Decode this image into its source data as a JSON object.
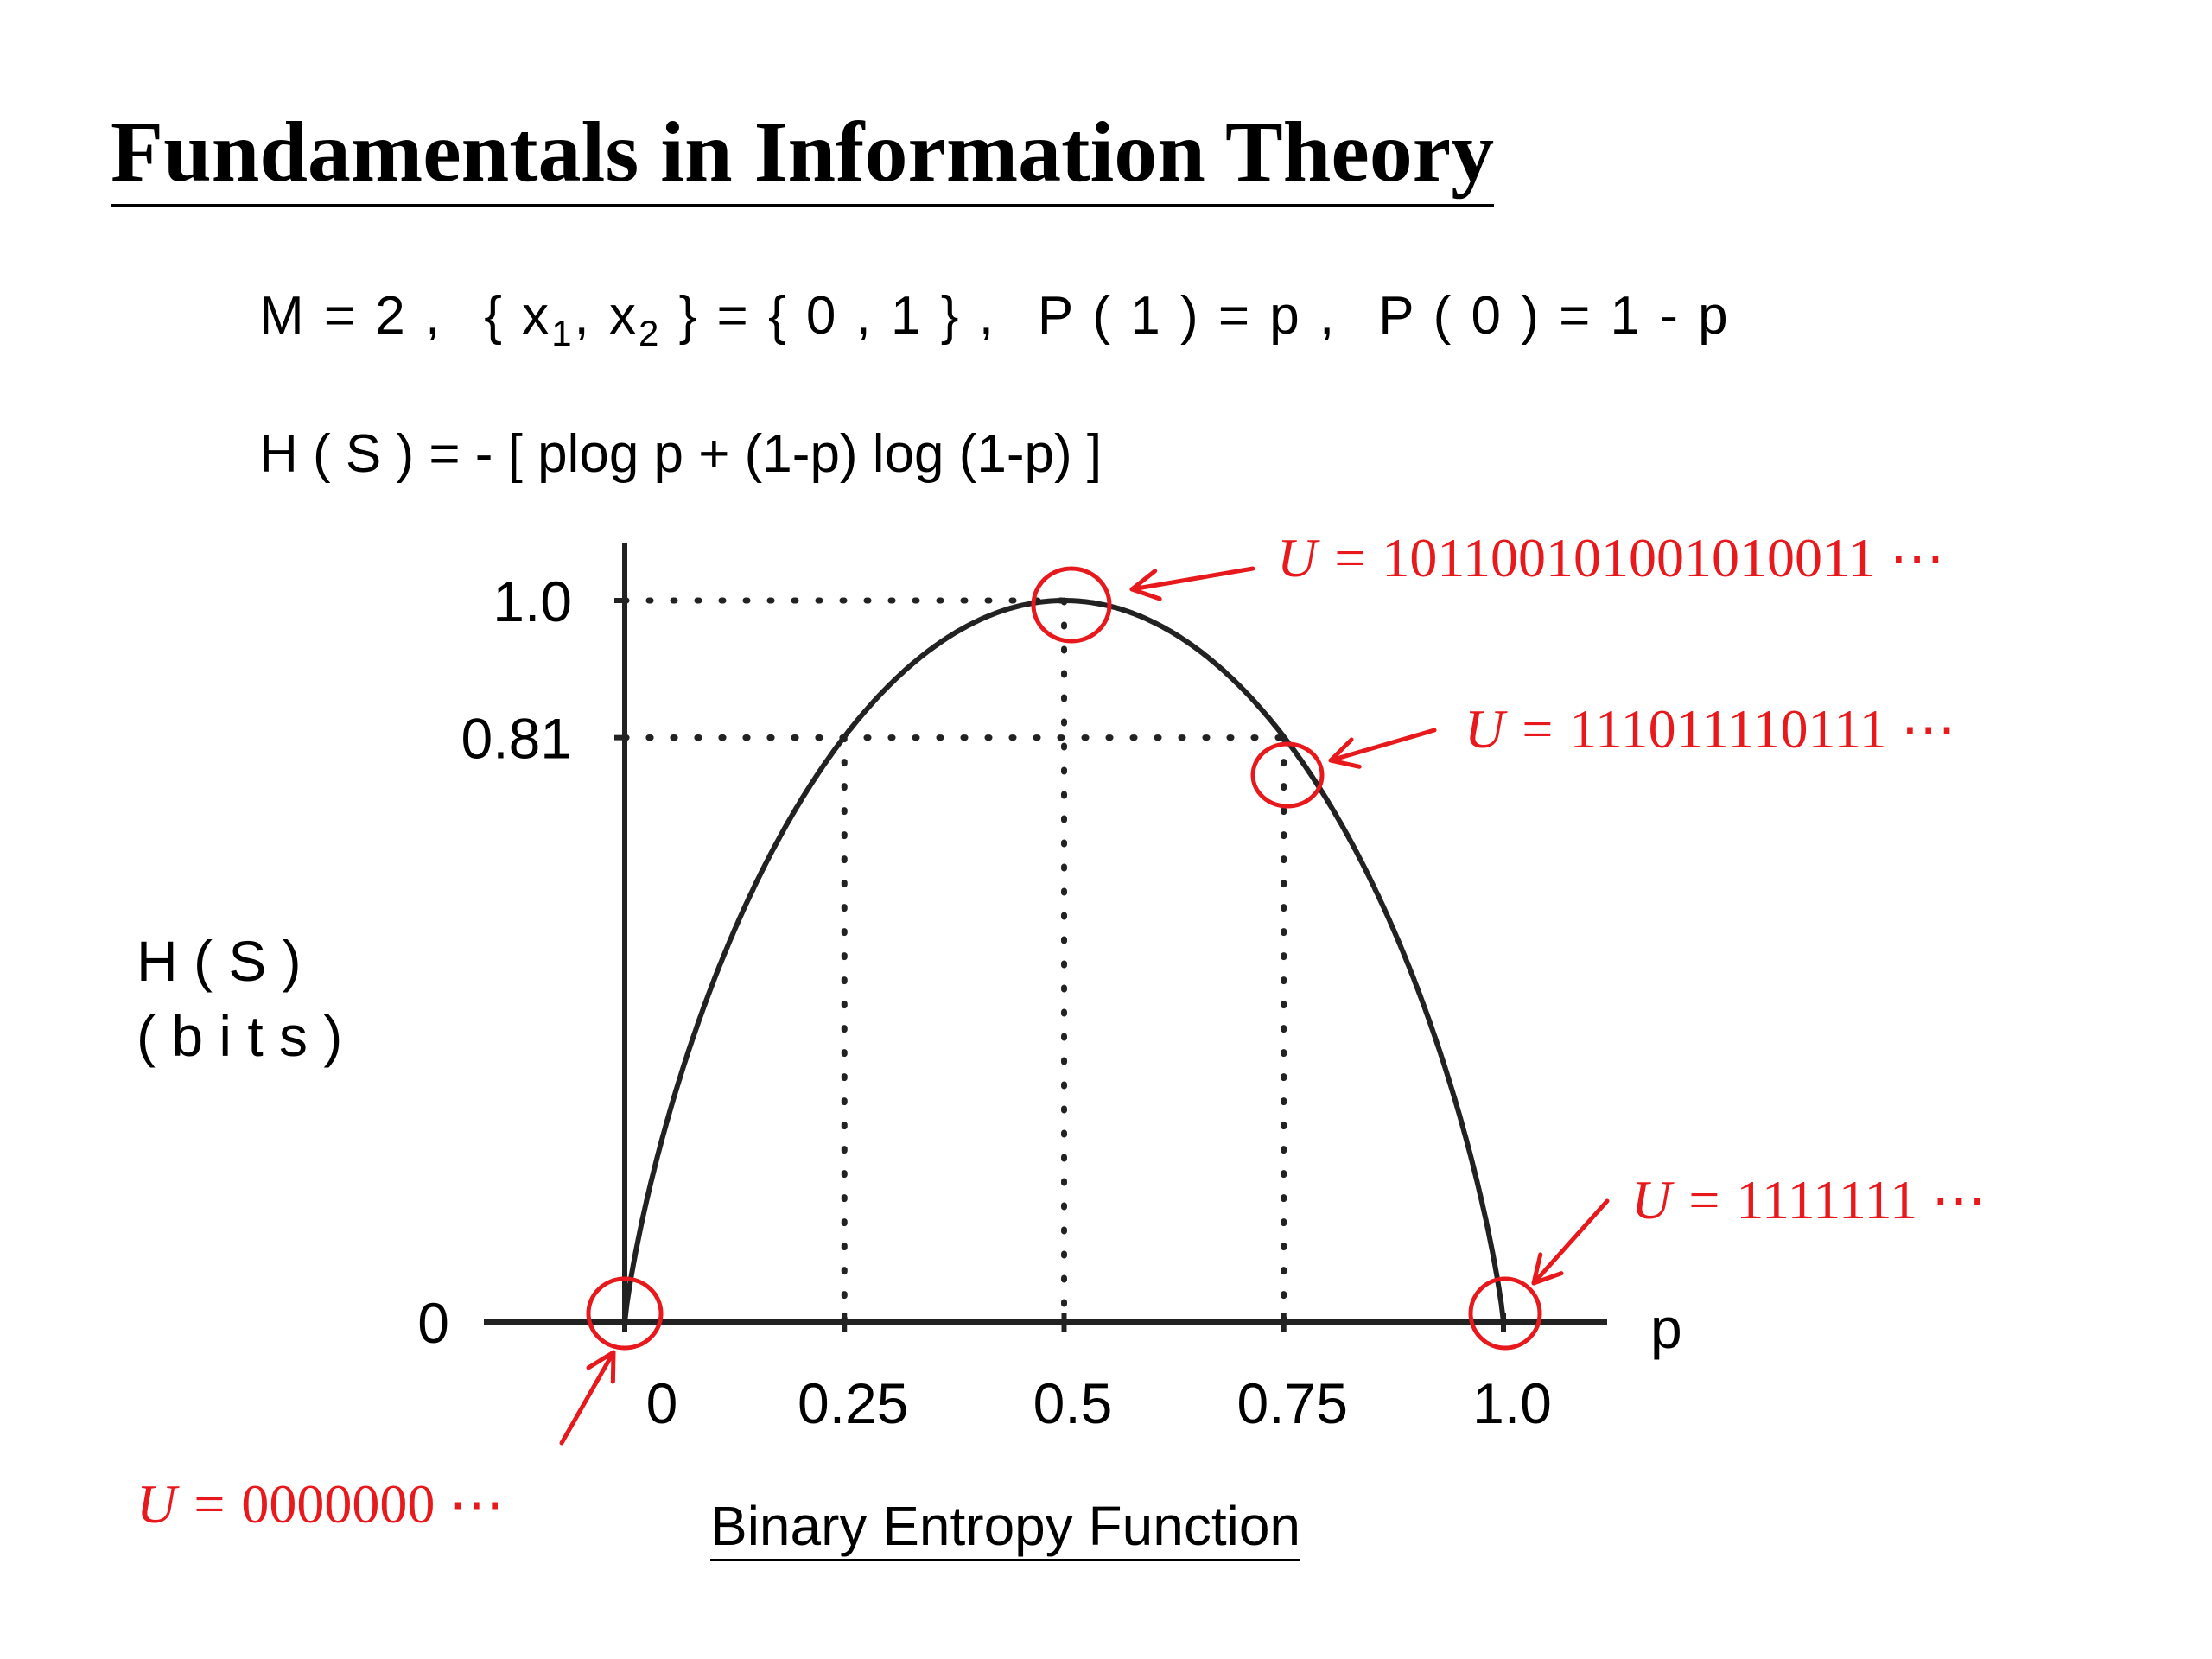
{
  "slide": {
    "title": "Fundamentals in Information Theory",
    "formula_line1": {
      "m_def": "M = 2 ,",
      "x_open": "{ x",
      "x1_sub": "1",
      "x_mid": ", x",
      "x2_sub": "2",
      "set_rest": "} = { 0 , 1 } ,",
      "p1": "P ( 1 ) = p ,",
      "p0": "P ( 0 ) = 1 - p"
    },
    "formula_line2": "H ( S ) = - [ plog p + (1-p) log (1-p) ]",
    "caption": "Binary Entropy Function"
  },
  "chart_data": {
    "type": "line",
    "title": "Binary Entropy Function",
    "xlabel": "p",
    "ylabel_line1": "H ( S )",
    "ylabel_line2": "( b i t s )",
    "x_ticks": [
      {
        "value": 0,
        "label": "0"
      },
      {
        "value": 0.25,
        "label": "0.25"
      },
      {
        "value": 0.5,
        "label": "0.5"
      },
      {
        "value": 0.75,
        "label": "0.75"
      },
      {
        "value": 1.0,
        "label": "1.0"
      }
    ],
    "y_ticks": [
      {
        "value": 0,
        "label": "0"
      },
      {
        "value": 0.81,
        "label": "0.81"
      },
      {
        "value": 1.0,
        "label": "1.0"
      }
    ],
    "xlim": [
      0,
      1
    ],
    "ylim": [
      0,
      1
    ],
    "grid": false,
    "series": [
      {
        "x": [
          0,
          0.01,
          0.02,
          0.05,
          0.1,
          0.15,
          0.2,
          0.25,
          0.3,
          0.35,
          0.4,
          0.45,
          0.5,
          0.55,
          0.6,
          0.65,
          0.7,
          0.75,
          0.8,
          0.85,
          0.9,
          0.95,
          0.98,
          0.99,
          1.0
        ],
        "y": [
          0,
          0.081,
          0.141,
          0.286,
          0.469,
          0.61,
          0.722,
          0.811,
          0.881,
          0.934,
          0.971,
          0.993,
          1.0,
          0.993,
          0.971,
          0.934,
          0.881,
          0.811,
          0.722,
          0.61,
          0.469,
          0.286,
          0.141,
          0.081,
          0
        ]
      }
    ],
    "reference_lines": [
      {
        "p": 0.5,
        "h": 1.0
      },
      {
        "p": 0.25,
        "h": 0.81
      },
      {
        "p": 0.75,
        "h": 0.81
      }
    ],
    "annotations": [
      {
        "p": 0.5,
        "h": 1.0,
        "prefix": "U = ",
        "value": "101100101001010011",
        "suffix": " ⋯"
      },
      {
        "p": 0.75,
        "h": 0.81,
        "prefix": "U = ",
        "value": "111011110111",
        "suffix": " ⋯"
      },
      {
        "p": 1.0,
        "h": 0,
        "prefix": "U = ",
        "value": "1111111",
        "suffix": " ⋯"
      },
      {
        "p": 0,
        "h": 0,
        "prefix": "U = ",
        "value": "0000000",
        "suffix": " ⋯"
      }
    ],
    "annotation_color": "#e8191c",
    "line_color": "#222222"
  }
}
